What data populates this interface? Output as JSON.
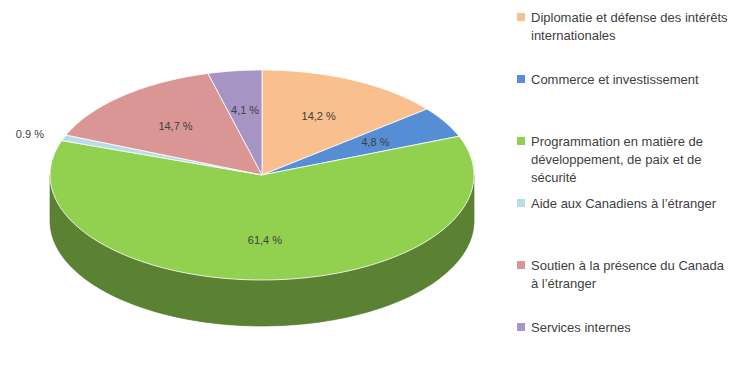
{
  "chart_data": {
    "type": "pie",
    "categories": [
      "Diplomatie et défense des intérêts internationales",
      "Commerce et investissement",
      "Programmation en matière de développement, de paix et de sécurité",
      "Aide aux Canadiens à l’étranger",
      "Soutien à la présence du Canada à l’étranger",
      "Services internes"
    ],
    "values": [
      14.2,
      4.8,
      61.4,
      0.9,
      14.7,
      4.1
    ],
    "value_labels": [
      "14,2 %",
      "4,8 %",
      "61,4 %",
      "0.9 %",
      "14,7 %",
      "4,1 %"
    ],
    "colors": [
      "#f9bf8f",
      "#558ed5",
      "#92d050",
      "#b7dee8",
      "#d99694",
      "#a594c4"
    ],
    "data_labels": true,
    "legend": "right"
  }
}
